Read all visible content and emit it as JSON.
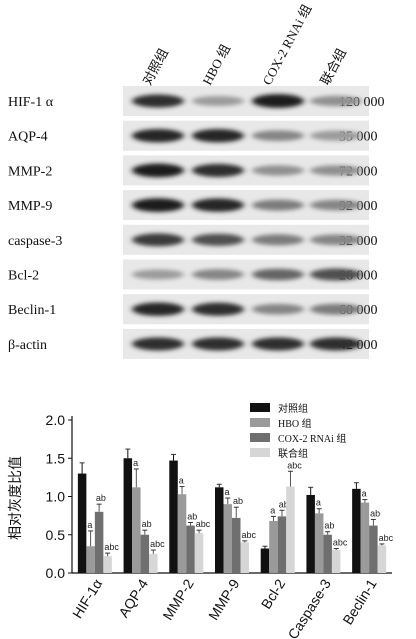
{
  "blot": {
    "groups": [
      "对照组",
      "HBO 组",
      "COX-2 RNAi 组",
      "联合组"
    ],
    "rows": [
      {
        "protein": "HIF-1 α",
        "size": "120 000",
        "intensity": [
          0.85,
          0.35,
          0.95,
          0.4
        ]
      },
      {
        "protein": "AQP-4",
        "size": "35 000",
        "intensity": [
          0.9,
          0.9,
          0.45,
          0.35
        ]
      },
      {
        "protein": "MMP-2",
        "size": "72 000",
        "intensity": [
          0.95,
          0.85,
          0.4,
          0.4
        ]
      },
      {
        "protein": "MMP-9",
        "size": "92 000",
        "intensity": [
          0.95,
          0.9,
          0.5,
          0.45
        ]
      },
      {
        "protein": "caspase-3",
        "size": "32 000",
        "intensity": [
          0.8,
          0.7,
          0.5,
          0.45
        ]
      },
      {
        "protein": "Bcl-2",
        "size": "26 000",
        "intensity": [
          0.35,
          0.45,
          0.6,
          0.7
        ]
      },
      {
        "protein": "Beclin-1",
        "size": "60 000",
        "intensity": [
          0.9,
          0.85,
          0.45,
          0.5
        ]
      },
      {
        "protein": "β-actin",
        "size": "42 000",
        "intensity": [
          0.85,
          0.85,
          0.85,
          0.85
        ]
      }
    ]
  },
  "chart_data": {
    "type": "bar",
    "ylabel": "相对灰度比值",
    "ylim": [
      0,
      2.0
    ],
    "yticks": [
      "0.0",
      "0.5",
      "1.0",
      "1.5",
      "2.0"
    ],
    "categories": [
      "HIF-1α",
      "AQP-4",
      "MMP-2",
      "MMP-9",
      "Bcl-2",
      "Caspase-3",
      "Beclin-1"
    ],
    "legend_position": "top-right",
    "series": [
      {
        "name": "对照组",
        "color": "#111111",
        "values": [
          1.3,
          1.5,
          1.47,
          1.12,
          0.32,
          1.02,
          1.1
        ],
        "errors": [
          0.14,
          0.12,
          0.08,
          0.04,
          0.03,
          0.1,
          0.08
        ],
        "labels": [
          "",
          "",
          "",
          "",
          "",
          "",
          ""
        ]
      },
      {
        "name": "HBO 组",
        "color": "#9a9a9a",
        "values": [
          0.35,
          1.12,
          1.03,
          0.9,
          0.68,
          0.78,
          0.92
        ],
        "errors": [
          0.2,
          0.24,
          0.1,
          0.08,
          0.06,
          0.06,
          0.04
        ],
        "labels": [
          "a",
          "a",
          "a",
          "a",
          "a",
          "a",
          "a"
        ]
      },
      {
        "name": "COX-2 RNAi 组",
        "color": "#6f6f6f",
        "values": [
          0.8,
          0.5,
          0.62,
          0.72,
          0.74,
          0.5,
          0.62
        ],
        "errors": [
          0.1,
          0.06,
          0.04,
          0.14,
          0.08,
          0.04,
          0.08
        ],
        "labels": [
          "ab",
          "ab",
          "ab",
          "ab",
          "ab",
          "ab",
          "ab"
        ]
      },
      {
        "name": "联合组",
        "color": "#d6d6d6",
        "values": [
          0.22,
          0.25,
          0.52,
          0.4,
          1.13,
          0.3,
          0.36
        ],
        "errors": [
          0.04,
          0.05,
          0.04,
          0.02,
          0.2,
          0.02,
          0.02
        ],
        "labels": [
          "abc",
          "abc",
          "abc",
          "abc",
          "abc",
          "abc",
          "abc"
        ]
      }
    ]
  }
}
